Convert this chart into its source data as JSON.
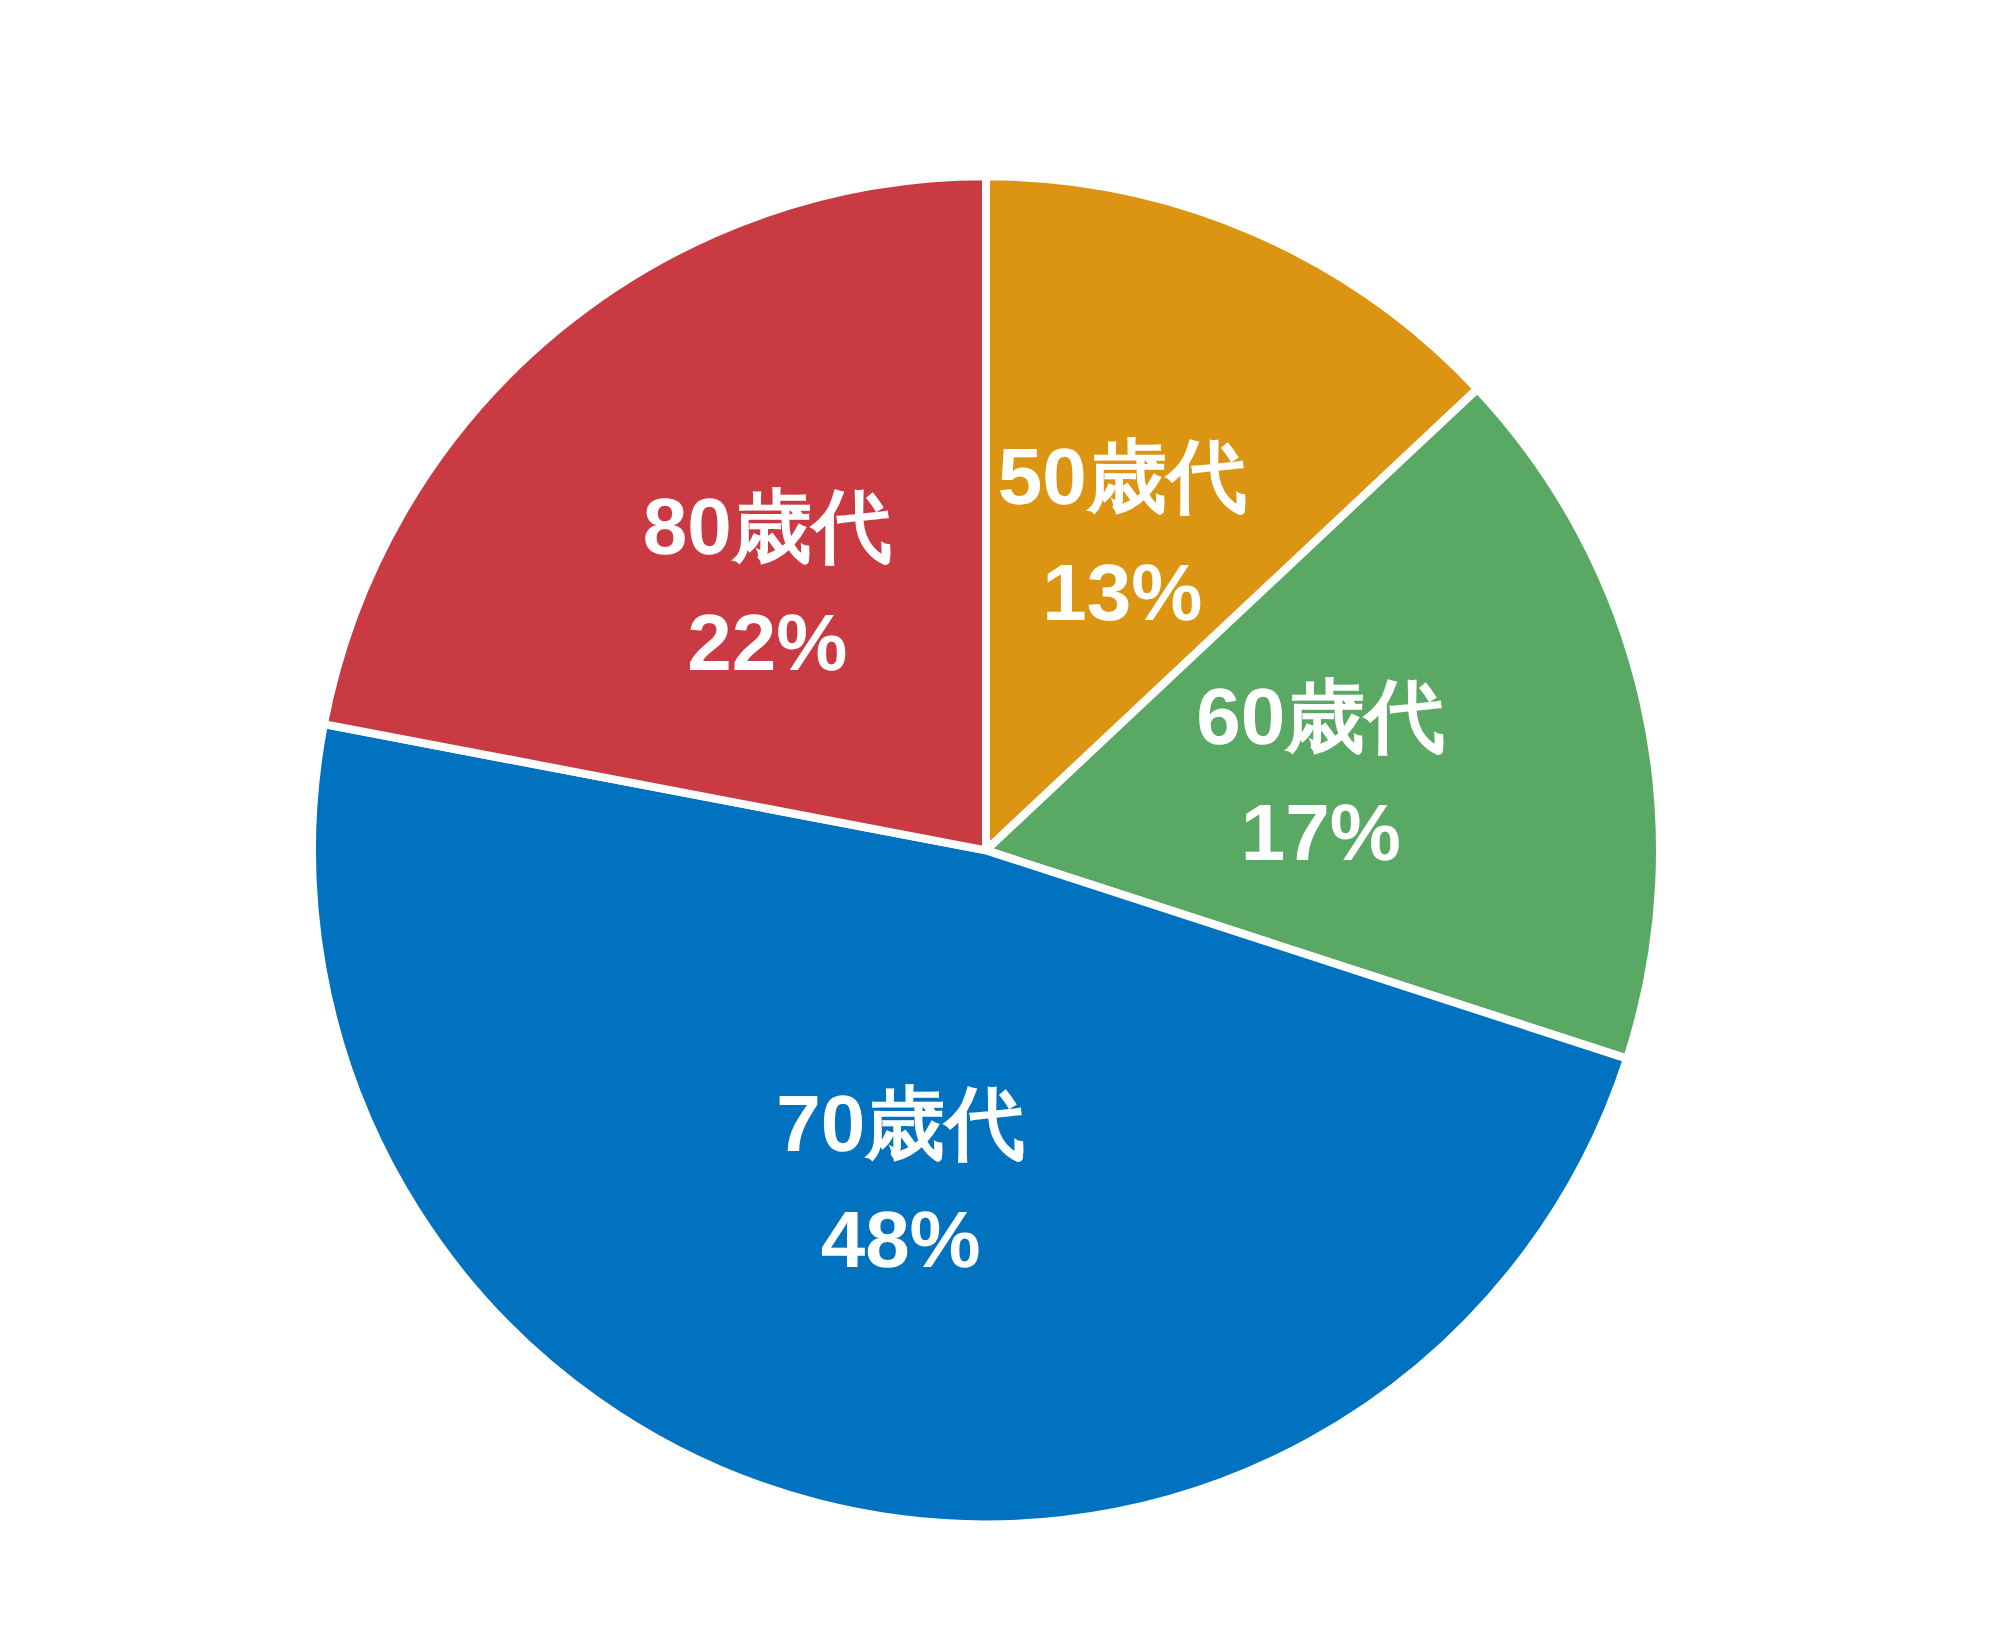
{
  "chart_data": {
    "type": "pie",
    "categories": [
      "50歳代",
      "60歳代",
      "70歳代",
      "80歳代"
    ],
    "values": [
      13,
      17,
      48,
      22
    ],
    "colors": [
      "#dc9512",
      "#59a864",
      "#0072bf",
      "#c93a42"
    ],
    "value_labels": [
      "13%",
      "17%",
      "48%",
      "22%"
    ],
    "legend": false
  }
}
